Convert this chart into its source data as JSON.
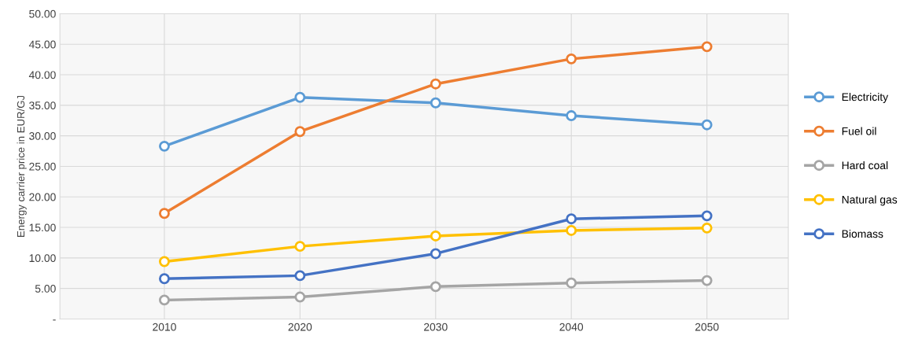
{
  "chart_data": {
    "type": "line",
    "ylabel": "Energy carrier price in EUR/GJ",
    "categories": [
      "2010",
      "2020",
      "2030",
      "2040",
      "2050"
    ],
    "series": [
      {
        "name": "Electricity",
        "color": "#5b9bd5",
        "values": [
          28.3,
          36.3,
          35.4,
          33.3,
          31.8
        ]
      },
      {
        "name": "Fuel oil",
        "color": "#ed7d31",
        "values": [
          17.3,
          30.7,
          38.5,
          42.6,
          44.6
        ]
      },
      {
        "name": "Hard coal",
        "color": "#a5a5a5",
        "values": [
          3.1,
          3.6,
          5.3,
          5.9,
          6.3
        ]
      },
      {
        "name": "Natural gas",
        "color": "#ffc000",
        "values": [
          9.4,
          11.9,
          13.6,
          14.5,
          14.9
        ]
      },
      {
        "name": "Biomass",
        "color": "#4472c4",
        "values": [
          6.6,
          7.1,
          10.7,
          16.4,
          16.9
        ]
      }
    ],
    "ylim": [
      0,
      50
    ],
    "yticks": [
      {
        "value": 0,
        "label": "-"
      },
      {
        "value": 5,
        "label": "5.00"
      },
      {
        "value": 10,
        "label": "10.00"
      },
      {
        "value": 15,
        "label": "15.00"
      },
      {
        "value": 20,
        "label": "20.00"
      },
      {
        "value": 25,
        "label": "25.00"
      },
      {
        "value": 30,
        "label": "30.00"
      },
      {
        "value": 35,
        "label": "35.00"
      },
      {
        "value": 40,
        "label": "40.00"
      },
      {
        "value": 45,
        "label": "45.00"
      },
      {
        "value": 50,
        "label": "50.00"
      }
    ],
    "grid": true,
    "legend": "right",
    "marker": "circle",
    "line_style": "solid"
  }
}
